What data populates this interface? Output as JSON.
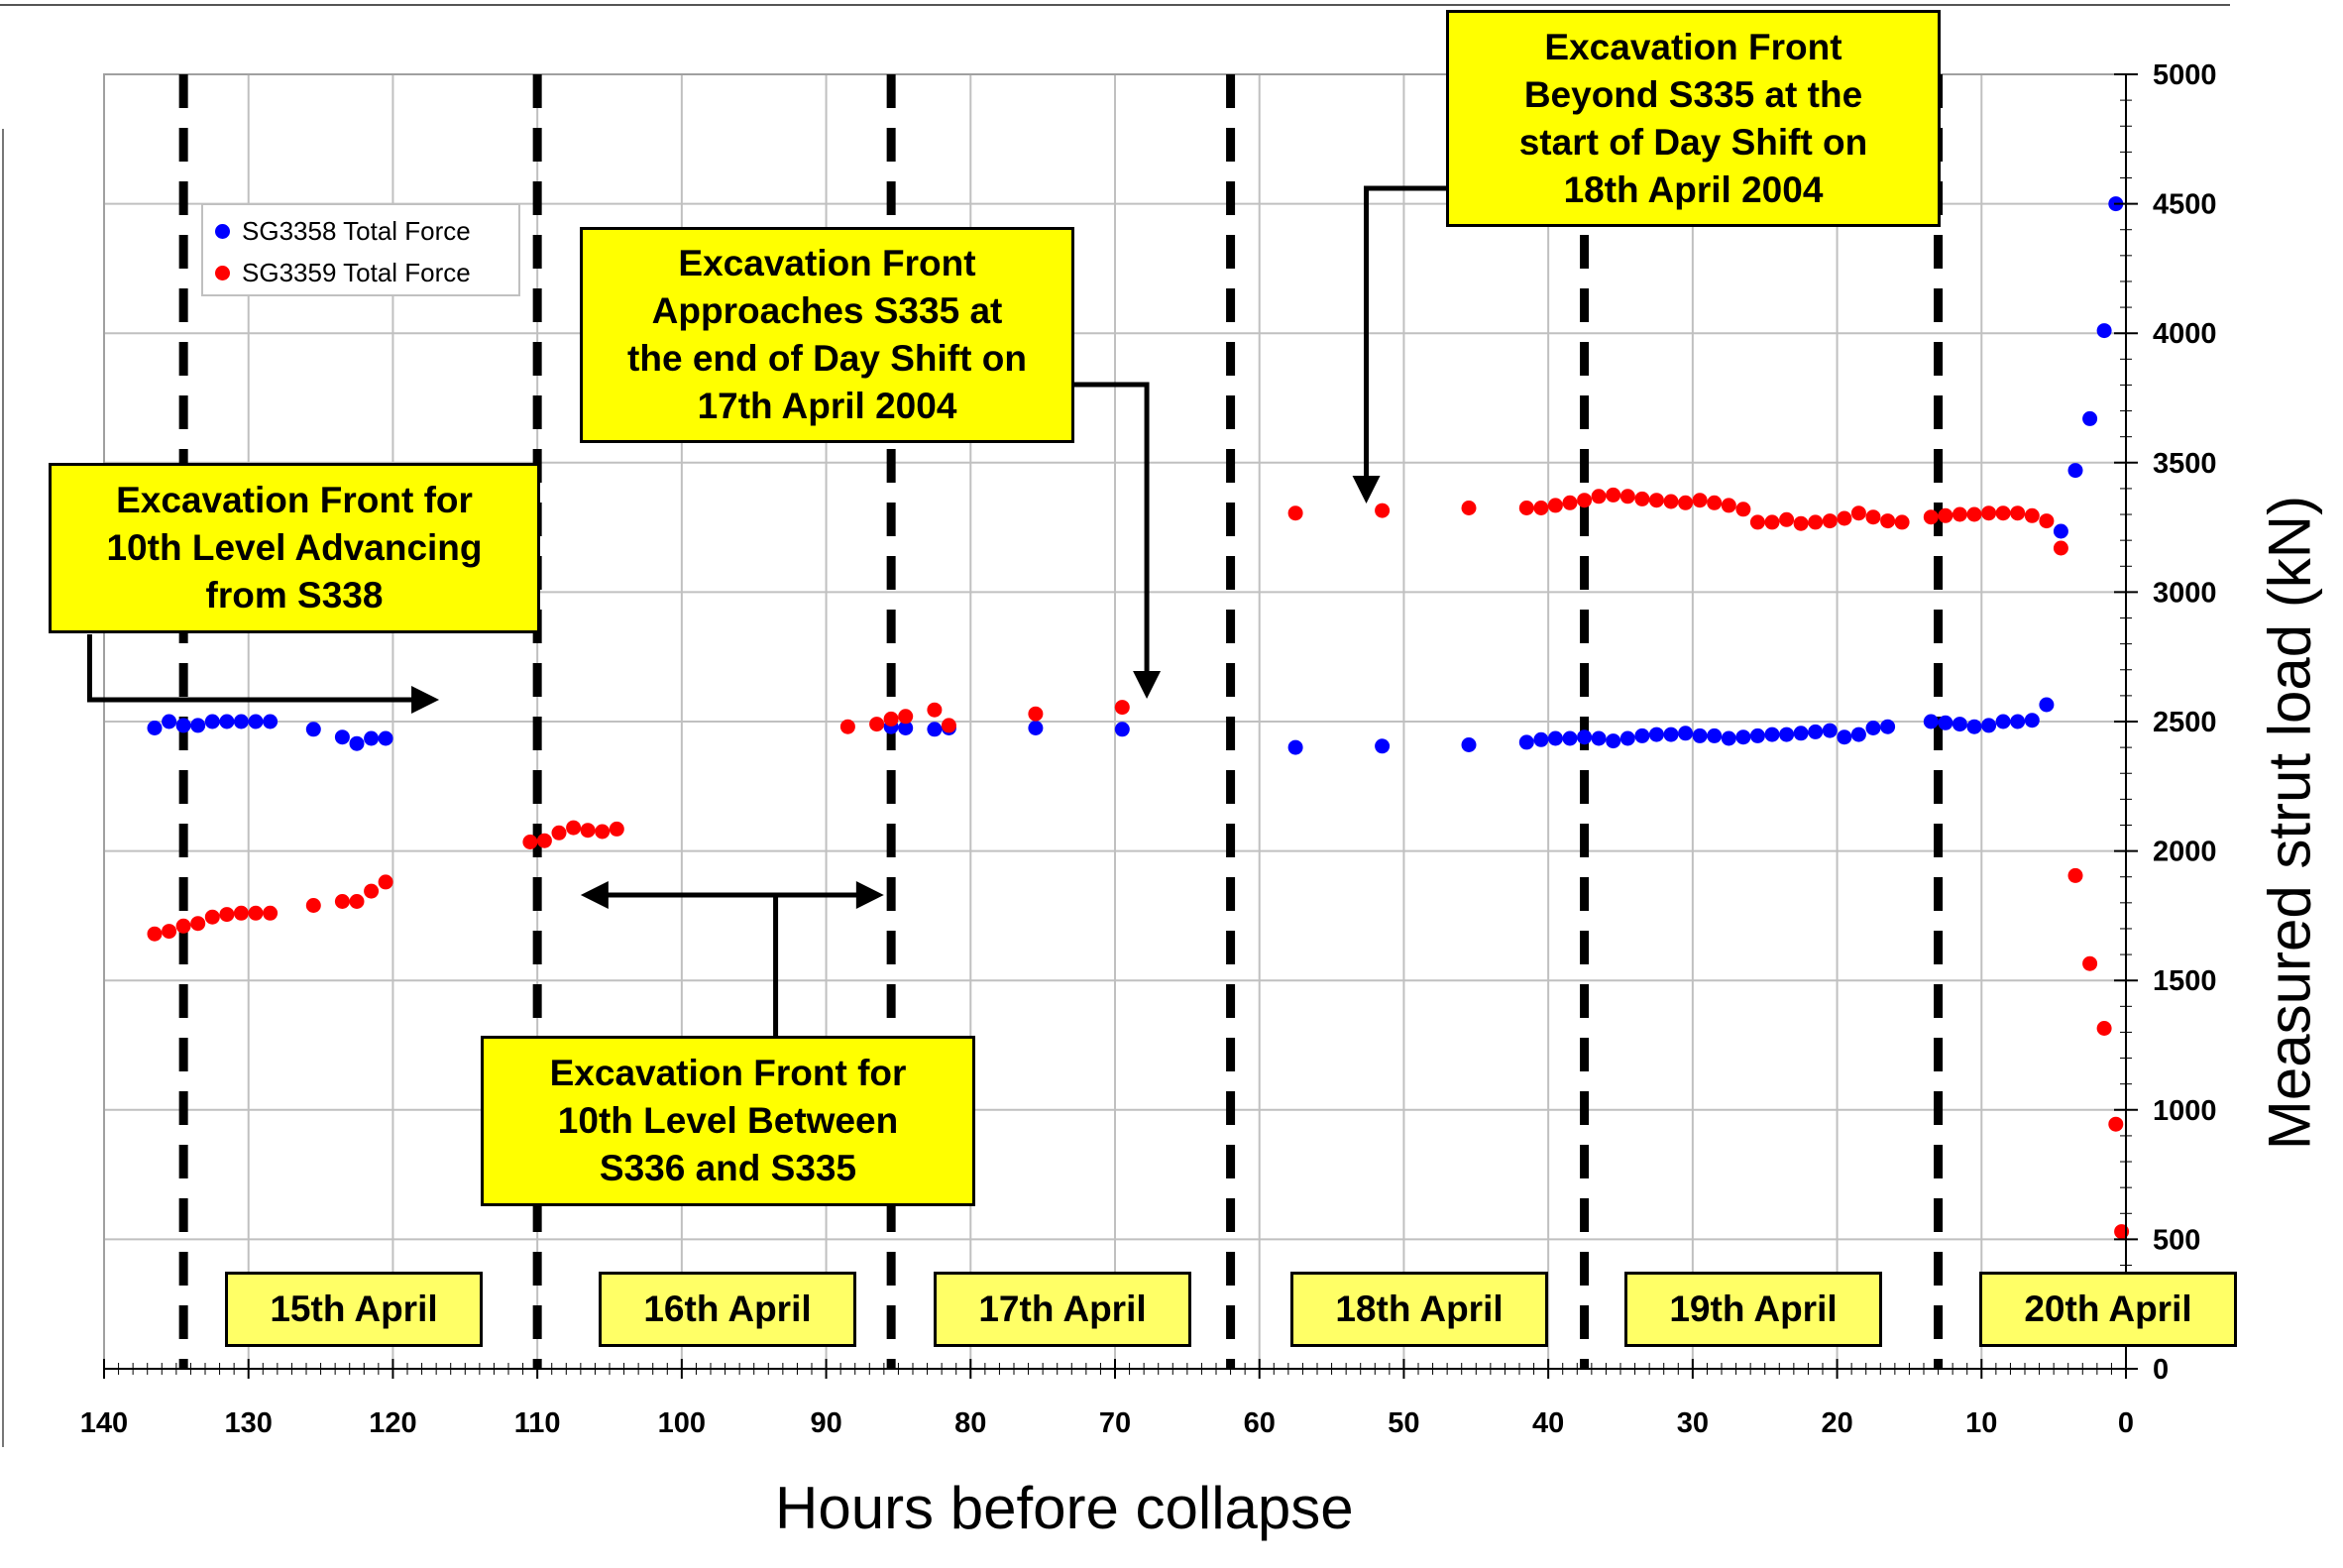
{
  "chart_data": {
    "type": "scatter",
    "title": "",
    "xlabel": "Hours before collapse",
    "ylabel": "Measured strut load (kN)",
    "xlim": [
      140,
      0
    ],
    "ylim": [
      0,
      5000
    ],
    "x_reversed": true,
    "y_axis_side": "right",
    "x_ticks": [
      "140",
      "130",
      "120",
      "110",
      "100",
      "90",
      "80",
      "70",
      "60",
      "50",
      "40",
      "30",
      "20",
      "10",
      "0"
    ],
    "y_ticks": [
      "0",
      "500",
      "1000",
      "1500",
      "2000",
      "2500",
      "3000",
      "3500",
      "4000",
      "4500",
      "5000"
    ],
    "grid": true,
    "legend_position": "top-left",
    "series": [
      {
        "name": "SG3358 Total Force",
        "color": "#0000ff",
        "points": [
          [
            136.5,
            2475
          ],
          [
            135.5,
            2500
          ],
          [
            134.5,
            2485
          ],
          [
            133.5,
            2485
          ],
          [
            132.5,
            2500
          ],
          [
            131.5,
            2500
          ],
          [
            130.5,
            2500
          ],
          [
            129.5,
            2500
          ],
          [
            128.5,
            2500
          ],
          [
            125.5,
            2470
          ],
          [
            123.5,
            2440
          ],
          [
            122.5,
            2415
          ],
          [
            121.5,
            2435
          ],
          [
            120.5,
            2435
          ],
          [
            85.5,
            2480
          ],
          [
            84.5,
            2475
          ],
          [
            82.5,
            2470
          ],
          [
            81.5,
            2475
          ],
          [
            75.5,
            2475
          ],
          [
            69.5,
            2470
          ],
          [
            57.5,
            2400
          ],
          [
            51.5,
            2405
          ],
          [
            45.5,
            2410
          ],
          [
            41.5,
            2420
          ],
          [
            40.5,
            2430
          ],
          [
            39.5,
            2435
          ],
          [
            38.5,
            2435
          ],
          [
            37.5,
            2440
          ],
          [
            36.5,
            2435
          ],
          [
            35.5,
            2425
          ],
          [
            34.5,
            2435
          ],
          [
            33.5,
            2445
          ],
          [
            32.5,
            2450
          ],
          [
            31.5,
            2450
          ],
          [
            30.5,
            2455
          ],
          [
            29.5,
            2445
          ],
          [
            28.5,
            2445
          ],
          [
            27.5,
            2435
          ],
          [
            26.5,
            2440
          ],
          [
            25.5,
            2445
          ],
          [
            24.5,
            2450
          ],
          [
            23.5,
            2450
          ],
          [
            22.5,
            2455
          ],
          [
            21.5,
            2460
          ],
          [
            20.5,
            2465
          ],
          [
            19.5,
            2440
          ],
          [
            18.5,
            2450
          ],
          [
            17.5,
            2475
          ],
          [
            16.5,
            2480
          ],
          [
            13.5,
            2500
          ],
          [
            12.5,
            2495
          ],
          [
            11.5,
            2490
          ],
          [
            10.5,
            2480
          ],
          [
            9.5,
            2485
          ],
          [
            8.5,
            2500
          ],
          [
            7.5,
            2500
          ],
          [
            6.5,
            2505
          ],
          [
            5.5,
            2565
          ],
          [
            4.5,
            3235
          ],
          [
            3.5,
            3470
          ],
          [
            2.5,
            3670
          ],
          [
            1.5,
            4010
          ],
          [
            0.7,
            4500
          ]
        ]
      },
      {
        "name": "SG3359 Total Force",
        "color": "#ff0000",
        "points": [
          [
            136.5,
            1680
          ],
          [
            135.5,
            1690
          ],
          [
            134.5,
            1710
          ],
          [
            133.5,
            1720
          ],
          [
            132.5,
            1745
          ],
          [
            131.5,
            1755
          ],
          [
            130.5,
            1760
          ],
          [
            129.5,
            1760
          ],
          [
            128.5,
            1760
          ],
          [
            125.5,
            1790
          ],
          [
            123.5,
            1805
          ],
          [
            122.5,
            1805
          ],
          [
            121.5,
            1845
          ],
          [
            120.5,
            1880
          ],
          [
            110.5,
            2035
          ],
          [
            109.5,
            2040
          ],
          [
            108.5,
            2070
          ],
          [
            107.5,
            2090
          ],
          [
            106.5,
            2080
          ],
          [
            105.5,
            2075
          ],
          [
            104.5,
            2085
          ],
          [
            88.5,
            2480
          ],
          [
            86.5,
            2490
          ],
          [
            85.5,
            2510
          ],
          [
            84.5,
            2520
          ],
          [
            82.5,
            2545
          ],
          [
            81.5,
            2485
          ],
          [
            75.5,
            2530
          ],
          [
            69.5,
            2555
          ],
          [
            57.5,
            3305
          ],
          [
            51.5,
            3315
          ],
          [
            45.5,
            3325
          ],
          [
            41.5,
            3325
          ],
          [
            40.5,
            3325
          ],
          [
            39.5,
            3335
          ],
          [
            38.5,
            3345
          ],
          [
            37.5,
            3355
          ],
          [
            36.5,
            3370
          ],
          [
            35.5,
            3375
          ],
          [
            34.5,
            3370
          ],
          [
            33.5,
            3360
          ],
          [
            32.5,
            3355
          ],
          [
            31.5,
            3350
          ],
          [
            30.5,
            3345
          ],
          [
            29.5,
            3355
          ],
          [
            28.5,
            3345
          ],
          [
            27.5,
            3335
          ],
          [
            26.5,
            3320
          ],
          [
            25.5,
            3270
          ],
          [
            24.5,
            3270
          ],
          [
            23.5,
            3280
          ],
          [
            22.5,
            3265
          ],
          [
            21.5,
            3270
          ],
          [
            20.5,
            3275
          ],
          [
            19.5,
            3285
          ],
          [
            18.5,
            3305
          ],
          [
            17.5,
            3290
          ],
          [
            16.5,
            3275
          ],
          [
            15.5,
            3270
          ],
          [
            13.5,
            3290
          ],
          [
            12.5,
            3295
          ],
          [
            11.5,
            3300
          ],
          [
            10.5,
            3300
          ],
          [
            9.5,
            3305
          ],
          [
            8.5,
            3305
          ],
          [
            7.5,
            3305
          ],
          [
            6.5,
            3295
          ],
          [
            5.5,
            3275
          ],
          [
            4.5,
            3170
          ],
          [
            3.5,
            1905
          ],
          [
            2.5,
            1565
          ],
          [
            1.5,
            1315
          ],
          [
            0.7,
            945
          ],
          [
            0.3,
            530
          ]
        ]
      }
    ],
    "vertical_markers": [
      134.5,
      110,
      85.5,
      62,
      37.5,
      13
    ],
    "day_labels": [
      {
        "label": "15th April",
        "x": 127.5
      },
      {
        "label": "16th April",
        "x": 102
      },
      {
        "label": "17th April",
        "x": 78.5
      },
      {
        "label": "18th April",
        "x": 54
      },
      {
        "label": "19th April",
        "x": 31
      },
      {
        "label": "20th April",
        "x": 6.5
      }
    ],
    "annotations": [
      {
        "lines": [
          "Excavation Front for",
          "10th Level Advancing",
          "from S338"
        ]
      },
      {
        "lines": [
          "Excavation Front for",
          "10th Level Between",
          "S336 and S335"
        ]
      },
      {
        "lines": [
          "Excavation Front",
          "Approaches S335 at",
          "the end of Day Shift on",
          "17th April 2004"
        ]
      },
      {
        "lines": [
          "Excavation Front",
          "Beyond S335 at the",
          "start of Day Shift on",
          "18th April 2004"
        ]
      }
    ]
  }
}
